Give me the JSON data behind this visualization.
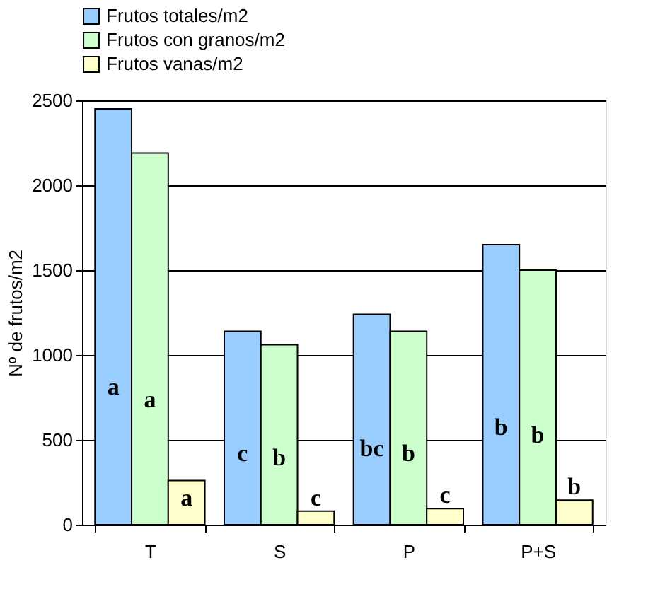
{
  "chart_data": {
    "type": "bar",
    "ylabel": "Nº de frutos/m2",
    "categories": [
      "T",
      "S",
      "P",
      "P+S"
    ],
    "series": [
      {
        "name": "Frutos totales/m2",
        "color": "#99ccff",
        "values": [
          2450,
          1140,
          1240,
          1650
        ],
        "value_labels": [
          "a",
          "c",
          "bc",
          "b"
        ]
      },
      {
        "name": "Frutos con granos/m2",
        "color": "#ccffcc",
        "values": [
          2190,
          1060,
          1140,
          1500
        ],
        "value_labels": [
          "a",
          "b",
          "b",
          "b"
        ]
      },
      {
        "name": "Frutos vanas/m2",
        "color": "#ffffcc",
        "values": [
          260,
          80,
          95,
          145
        ],
        "value_labels": [
          "a",
          "c",
          "c",
          "b"
        ]
      }
    ],
    "ylim": [
      0,
      2500
    ],
    "yticks": [
      0,
      500,
      1000,
      1500,
      2000,
      2500
    ],
    "grid": "y",
    "legend": "top"
  }
}
